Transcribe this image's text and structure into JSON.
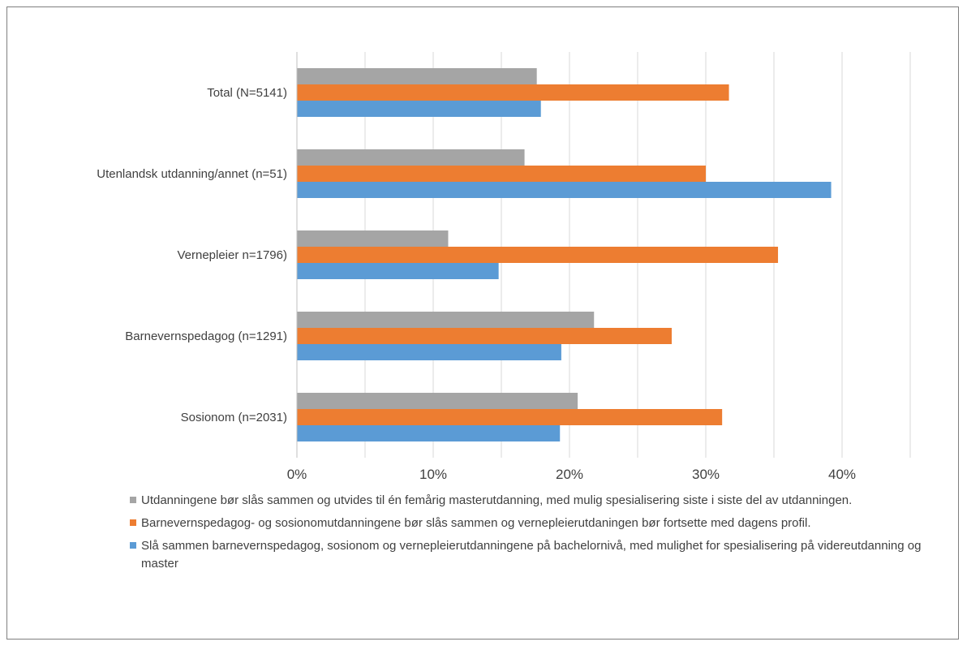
{
  "chart_data": {
    "type": "bar",
    "orientation": "horizontal",
    "categories": [
      "Total (N=5141)",
      "Utenlandsk utdanning/annet (n=51)",
      "Vernepleier n=1796)",
      "Barnevernspedagog (n=1291)",
      "Sosionom (n=2031)"
    ],
    "series": [
      {
        "name": "Utdanningene bør slås sammen og utvides til én femårig masterutdanning, med mulig spesialisering siste i siste del av utdanningen.",
        "color": "#a5a5a5",
        "values": [
          17.6,
          16.7,
          11.1,
          21.8,
          20.6
        ]
      },
      {
        "name": "Barnevernspedagog- og sosionomutdanningene bør slås sammen og vernepleierutdaningen bør fortsette med dagens profil.",
        "color": "#ed7d31",
        "values": [
          31.7,
          30.0,
          35.3,
          27.5,
          31.2
        ]
      },
      {
        "name": "Slå sammen barnevernspedagog, sosionom og vernepleierutdanningene på bachelornivå, med mulighet for spesialisering på videreutdanning og master",
        "color": "#5b9bd5",
        "values": [
          17.9,
          39.2,
          14.8,
          19.4,
          19.3
        ]
      }
    ],
    "xlim": [
      0,
      45
    ],
    "x_ticks": [
      "0%",
      "10%",
      "20%",
      "30%",
      "40%"
    ],
    "x_tick_values": [
      0,
      10,
      20,
      30,
      40
    ],
    "grid": true,
    "legend_position": "bottom"
  }
}
